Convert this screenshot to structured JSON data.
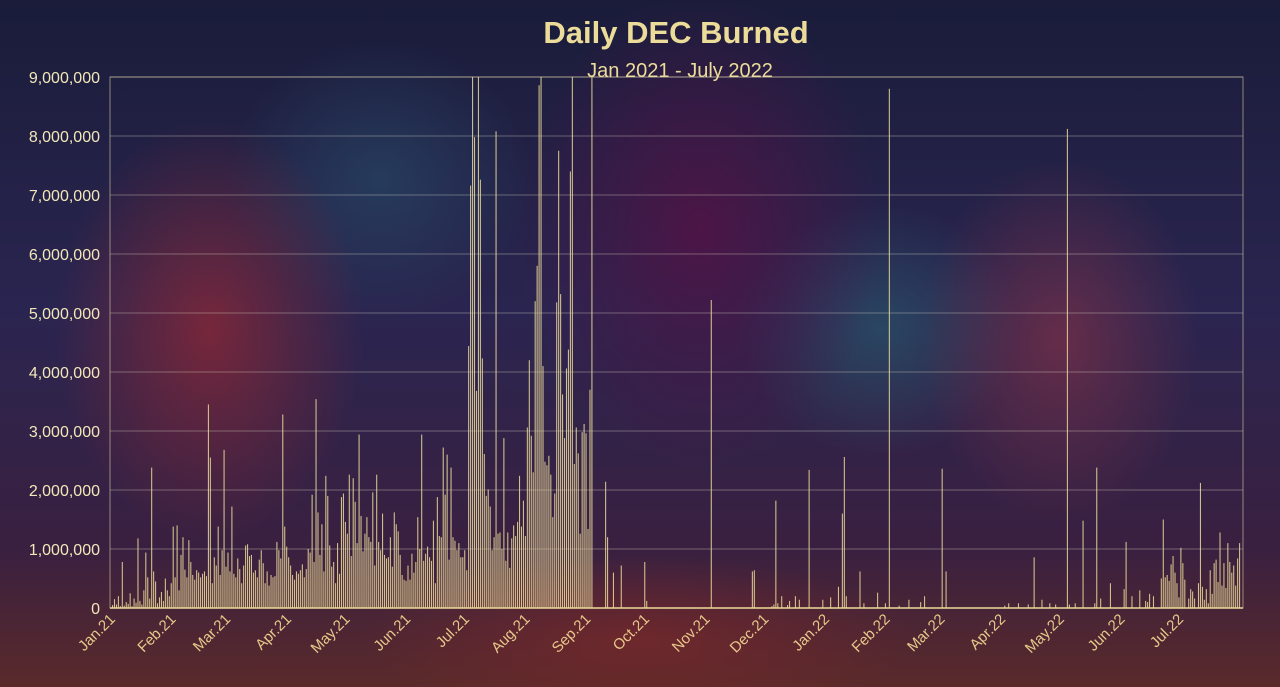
{
  "chart_data": {
    "type": "bar",
    "title": "Daily DEC Burned",
    "subtitle": "Jan 2021 - July 2022",
    "xlabel": "",
    "ylabel": "",
    "ylim": [
      0,
      9000000
    ],
    "y_ticks": [
      "0",
      "1,000,000",
      "2,000,000",
      "3,000,000",
      "4,000,000",
      "5,000,000",
      "6,000,000",
      "7,000,000",
      "8,000,000",
      "9,000,000"
    ],
    "x_ticks": [
      "Jan.21",
      "Feb.21",
      "Mar.21",
      "Apr.21",
      "May.21",
      "Jun.21",
      "Jul.21",
      "Aug.21",
      "Sep.21",
      "Oct.21",
      "Nov.21",
      "Dec.21",
      "Jan.22",
      "Feb.22",
      "Mar.22",
      "Apr.22",
      "May.22",
      "Jun.22",
      "Jul.22"
    ],
    "grid": true,
    "series": [
      {
        "color": "#ecdc9a",
        "months": [
          {
            "month": "Jan.21",
            "daily": [
              50000,
              150000,
              60000,
              200000,
              30000,
              780000,
              40000,
              100000,
              70000,
              250000,
              30000,
              160000,
              90000,
              1180000,
              120000,
              60000,
              300000,
              940000,
              520000,
              160000,
              2380000,
              620000,
              450000,
              80000,
              180000,
              270000,
              120000,
              500000,
              300000,
              200000,
              420000
            ]
          },
          {
            "month": "Feb.21",
            "daily": [
              1380000,
              520000,
              1400000,
              300000,
              900000,
              1200000,
              650000,
              520000,
              1150000,
              780000,
              560000,
              480000,
              640000,
              600000,
              520000,
              580000,
              620000,
              540000,
              3450000,
              2550000,
              420000,
              860000,
              720000,
              1380000,
              560000,
              980000,
              2680000,
              700000
            ]
          },
          {
            "month": "Mar.21",
            "daily": [
              940000,
              620000,
              1720000,
              580000,
              520000,
              840000,
              660000,
              420000,
              720000,
              1060000,
              1080000,
              880000,
              900000,
              600000,
              640000,
              520000,
              820000,
              980000,
              760000,
              420000,
              620000,
              380000,
              560000,
              520000,
              540000,
              1120000,
              980000,
              840000,
              3280000,
              1380000,
              1040000
            ]
          },
          {
            "month": "Apr.21",
            "daily": [
              860000,
              720000,
              560000,
              480000,
              620000,
              580000,
              640000,
              740000,
              520000,
              660000,
              1000000,
              940000,
              1920000,
              780000,
              3540000,
              1620000,
              900000,
              1420000,
              620000,
              2240000,
              1900000,
              1060000,
              700000,
              780000,
              420000,
              1100000,
              580000,
              1880000,
              1940000,
              1460000
            ]
          },
          {
            "month": "May.21",
            "daily": [
              1260000,
              2260000,
              880000,
              2200000,
              1800000,
              1100000,
              2940000,
              1560000,
              960000,
              1260000,
              1540000,
              1200000,
              1120000,
              1960000,
              720000,
              2260000,
              1120000,
              980000,
              1600000,
              900000,
              840000,
              860000,
              1200000,
              700000,
              1620000,
              1420000,
              1300000,
              900000,
              560000,
              480000,
              460000
            ]
          },
          {
            "month": "Jun.21",
            "daily": [
              720000,
              480000,
              920000,
              600000,
              780000,
              1540000,
              1000000,
              2940000,
              800000,
              920000,
              1040000,
              860000,
              800000,
              1480000,
              420000,
              1880000,
              1220000,
              1200000,
              2720000,
              1920000,
              2600000,
              820000,
              2380000,
              1200000,
              1140000,
              980000,
              1100000,
              860000,
              860000,
              980000
            ]
          },
          {
            "month": "Jul.21",
            "daily": [
              640000,
              4440000,
              7160000,
              9000000,
              7980000,
              3680000,
              9000000,
              7260000,
              4230000,
              2610000,
              1900000,
              2010000,
              1720000,
              980000,
              1200000,
              8080000,
              1260000,
              1280000,
              1000000,
              2880000,
              800000,
              1280000,
              680000,
              1180000,
              1400000,
              1220000,
              1460000,
              2240000,
              1380000,
              1820000,
              1220000
            ]
          },
          {
            "month": "Aug.21",
            "daily": [
              3060000,
              4200000,
              2920000,
              2300000,
              5200000,
              5800000,
              8860000,
              9000000,
              4100000,
              2480000,
              2420000,
              2580000,
              2260000,
              1540000,
              1940000,
              5180000,
              7750000,
              5320000,
              3620000,
              2880000,
              4060000,
              4380000,
              7400000,
              9000000,
              2440000,
              3060000,
              2620000,
              1260000,
              2980000,
              3120000,
              2960000
            ]
          },
          {
            "month": "Sep.21",
            "daily": [
              1340000,
              3700000,
              9000000,
              0,
              0,
              0,
              0,
              0,
              0,
              2140000,
              1200000,
              0,
              0,
              600000,
              0,
              0,
              0,
              720000,
              0,
              0,
              0,
              0,
              0,
              0,
              0,
              0,
              0,
              0,
              0,
              780000
            ]
          },
          {
            "month": "Oct.21",
            "daily": [
              120000,
              0,
              0,
              0,
              0,
              0,
              0,
              0,
              0,
              0,
              0,
              0,
              0,
              0,
              0,
              0,
              0,
              0,
              0,
              0,
              0,
              0,
              0,
              0,
              0,
              0,
              0,
              0,
              0,
              0,
              0
            ]
          },
          {
            "month": "Nov.21",
            "daily": [
              0,
              0,
              5220000,
              0,
              0,
              0,
              0,
              0,
              0,
              0,
              0,
              0,
              0,
              0,
              0,
              0,
              0,
              0,
              0,
              0,
              0,
              0,
              0,
              620000,
              640000,
              0,
              0,
              0,
              0,
              0
            ]
          },
          {
            "month": "Dec.21",
            "daily": [
              0,
              0,
              0,
              30000,
              60000,
              1820000,
              80000,
              0,
              200000,
              0,
              0,
              50000,
              120000,
              0,
              0,
              200000,
              0,
              140000,
              0,
              0,
              0,
              0,
              2340000,
              0,
              0,
              0,
              0,
              0,
              0,
              140000,
              0
            ]
          },
          {
            "month": "Jan.22",
            "daily": [
              0,
              0,
              180000,
              0,
              0,
              0,
              360000,
              0,
              1600000,
              2560000,
              200000,
              0,
              0,
              0,
              0,
              0,
              0,
              620000,
              0,
              80000,
              0,
              0,
              0,
              0,
              0,
              0,
              260000,
              0,
              0,
              0,
              80000
            ]
          },
          {
            "month": "Feb.22",
            "daily": [
              0,
              8800000,
              0,
              0,
              0,
              0,
              40000,
              0,
              0,
              0,
              0,
              140000,
              0,
              0,
              0,
              0,
              0,
              100000,
              0,
              200000,
              0,
              0,
              0,
              0,
              0,
              0,
              0,
              0
            ]
          },
          {
            "month": "Mar.22",
            "daily": [
              2360000,
              0,
              620000,
              0,
              0,
              0,
              0,
              0,
              0,
              0,
              0,
              0,
              0,
              0,
              0,
              0,
              0,
              0,
              0,
              0,
              0,
              0,
              0,
              0,
              0,
              0,
              0,
              0,
              0,
              0,
              0
            ]
          },
          {
            "month": "Apr.22",
            "daily": [
              0,
              40000,
              0,
              80000,
              0,
              0,
              0,
              0,
              80000,
              0,
              0,
              0,
              0,
              60000,
              0,
              0,
              860000,
              0,
              0,
              0,
              140000,
              0,
              0,
              0,
              80000,
              0,
              0,
              60000,
              0,
              0
            ]
          },
          {
            "month": "May.22",
            "daily": [
              0,
              0,
              0,
              8120000,
              60000,
              0,
              0,
              80000,
              0,
              0,
              0,
              1480000,
              0,
              0,
              0,
              0,
              0,
              80000,
              2380000,
              0,
              160000,
              0,
              0,
              0,
              0,
              420000,
              0,
              0,
              0,
              0,
              0
            ]
          },
          {
            "month": "Jun.22",
            "daily": [
              0,
              320000,
              1120000,
              0,
              0,
              200000,
              0,
              0,
              0,
              300000,
              0,
              0,
              120000,
              100000,
              240000,
              0,
              200000,
              0,
              0,
              0,
              500000,
              1500000,
              520000,
              560000,
              460000,
              740000,
              880000,
              600000,
              420000,
              180000
            ]
          },
          {
            "month": "Jul.22",
            "daily": [
              1020000,
              760000,
              480000,
              0,
              160000,
              320000,
              280000,
              160000,
              0,
              420000,
              2120000,
              360000,
              140000,
              320000,
              80000,
              640000,
              240000,
              760000,
              820000,
              440000,
              1280000,
              380000,
              760000,
              340000,
              1100000,
              780000,
              600000,
              720000,
              380000,
              840000,
              1100000
            ]
          }
        ]
      }
    ]
  }
}
